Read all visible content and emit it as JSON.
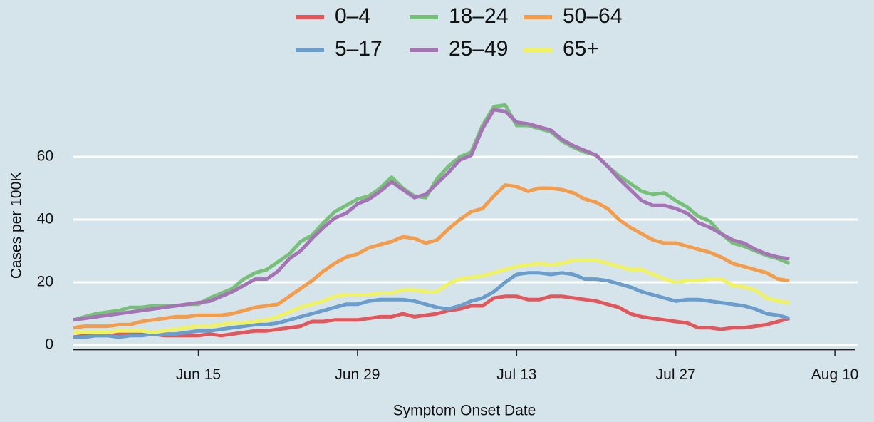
{
  "chart_data": {
    "type": "line",
    "x_label": "Symptom Onset Date",
    "y_label": "Cases per 100K",
    "x": [
      "Jun 4",
      "Jun 5",
      "Jun 6",
      "Jun 7",
      "Jun 8",
      "Jun 9",
      "Jun 10",
      "Jun 11",
      "Jun 12",
      "Jun 13",
      "Jun 14",
      "Jun 15",
      "Jun 16",
      "Jun 17",
      "Jun 18",
      "Jun 19",
      "Jun 20",
      "Jun 21",
      "Jun 22",
      "Jun 23",
      "Jun 24",
      "Jun 25",
      "Jun 26",
      "Jun 27",
      "Jun 28",
      "Jun 29",
      "Jun 30",
      "Jul 1",
      "Jul 2",
      "Jul 3",
      "Jul 4",
      "Jul 5",
      "Jul 6",
      "Jul 7",
      "Jul 8",
      "Jul 9",
      "Jul 10",
      "Jul 11",
      "Jul 12",
      "Jul 13",
      "Jul 14",
      "Jul 15",
      "Jul 16",
      "Jul 17",
      "Jul 18",
      "Jul 19",
      "Jul 20",
      "Jul 21",
      "Jul 22",
      "Jul 23",
      "Jul 24",
      "Jul 25",
      "Jul 26",
      "Jul 27",
      "Jul 28",
      "Jul 29",
      "Jul 30",
      "Jul 31",
      "Aug 1",
      "Aug 2",
      "Aug 3",
      "Aug 4",
      "Aug 5",
      "Aug 6"
    ],
    "xlim": [
      "Jun 4",
      "Aug 12"
    ],
    "xticks": [
      "Jun 15",
      "Jun 29",
      "Jul 13",
      "Jul 27",
      "Aug 10"
    ],
    "ylim": [
      -1.5,
      80
    ],
    "yticks": [
      0,
      20,
      40,
      60
    ],
    "grid": true,
    "series": [
      {
        "name": "0–4",
        "color": "#e2575b",
        "values": [
          2.5,
          3,
          3,
          3,
          3.5,
          3.5,
          3.5,
          3.5,
          3,
          3,
          3,
          3,
          3.5,
          3,
          3.5,
          4,
          4.5,
          4.5,
          5,
          5.5,
          6,
          7.5,
          7.5,
          8,
          8,
          8,
          8.5,
          9,
          9,
          10,
          9,
          9.5,
          10,
          11,
          11.5,
          12.5,
          12.5,
          15,
          15.5,
          15.5,
          14.5,
          14.5,
          15.5,
          15.5,
          15,
          14.5,
          14,
          13,
          12,
          10,
          9,
          8.5,
          8,
          7.5,
          7,
          5.5,
          5.5,
          5,
          5.5,
          5.5,
          6,
          6.5,
          7.5,
          8.5
        ]
      },
      {
        "name": "5–17",
        "color": "#6a9ccc",
        "values": [
          2.5,
          2.5,
          3,
          3,
          2.5,
          3,
          3,
          3.5,
          3.5,
          3.5,
          4,
          4.5,
          4.5,
          5,
          5.5,
          6,
          6.5,
          6.5,
          7,
          8,
          9,
          10,
          11,
          12,
          13,
          13,
          14,
          14.5,
          14.5,
          14.5,
          14,
          13,
          12,
          11.5,
          12.5,
          14,
          15,
          17,
          20,
          22.5,
          23,
          23,
          22.5,
          23,
          22.5,
          21,
          21,
          20.5,
          19.5,
          18.5,
          17,
          16,
          15,
          14,
          14.5,
          14.5,
          14,
          13.5,
          13,
          12.5,
          11.5,
          10,
          9.5,
          8.5
        ]
      },
      {
        "name": "18–24",
        "color": "#78c07a",
        "values": [
          8,
          9,
          10,
          10.5,
          11,
          12,
          12,
          12.5,
          12.5,
          12.5,
          13,
          13,
          15,
          16.5,
          18,
          21,
          23,
          24,
          26.5,
          29,
          33,
          35,
          39,
          42.5,
          44.5,
          46.5,
          47.5,
          50,
          53.5,
          50,
          47.5,
          47,
          53,
          57,
          60,
          61.5,
          70,
          76,
          76.5,
          70,
          70,
          69,
          68,
          65,
          63,
          61.5,
          60.5,
          57,
          54,
          51.5,
          49,
          48,
          48.5,
          46,
          44,
          41,
          39.5,
          35.5,
          32.5,
          31.5,
          30,
          28.5,
          27.5,
          26
        ]
      },
      {
        "name": "25–49",
        "color": "#a574b4",
        "values": [
          8,
          8.5,
          9,
          9.5,
          10,
          10.5,
          11,
          11.5,
          12,
          12.5,
          13,
          13.5,
          14,
          15.5,
          17,
          19,
          21,
          21,
          23.5,
          27.5,
          30,
          34,
          37.5,
          40.5,
          42,
          45,
          46.5,
          49,
          52,
          49.5,
          47,
          48,
          51.5,
          55,
          59,
          60.5,
          69,
          75,
          74.5,
          71,
          70.5,
          69.5,
          68.5,
          65.5,
          63.5,
          62,
          60.5,
          57,
          53,
          49.5,
          46,
          44.5,
          44.5,
          43.5,
          42,
          39,
          37.5,
          35.5,
          33.5,
          32.5,
          30.5,
          29,
          28,
          27.5
        ]
      },
      {
        "name": "50–64",
        "color": "#f29c4c",
        "values": [
          5.5,
          6,
          6,
          6,
          6.5,
          6.5,
          7.5,
          8,
          8.5,
          9,
          9,
          9.5,
          9.5,
          9.5,
          10,
          11,
          12,
          12.5,
          13,
          15.5,
          18,
          20.5,
          23.5,
          26,
          28,
          29,
          31,
          32,
          33,
          34.5,
          34,
          32.5,
          33.5,
          37,
          40,
          42.5,
          43.5,
          47.5,
          51,
          50.5,
          49,
          50,
          50,
          49.5,
          48.5,
          46.5,
          45.5,
          43.5,
          40,
          37.5,
          35.5,
          33.5,
          32.5,
          32.5,
          31.5,
          30.5,
          29.5,
          28,
          26,
          25,
          24,
          23,
          21,
          20.5
        ]
      },
      {
        "name": "65+",
        "color": "#f0f260",
        "values": [
          4,
          4,
          4,
          4,
          4.5,
          4.5,
          4.5,
          4,
          4.5,
          5,
          5.5,
          6,
          6,
          6.5,
          7,
          7,
          7.5,
          8,
          9,
          10.5,
          12,
          13,
          14,
          15.5,
          16,
          16,
          16,
          16.5,
          16.5,
          17.5,
          17.5,
          17,
          17,
          19.5,
          21,
          21.5,
          22,
          23,
          24,
          25,
          25.5,
          26,
          25.5,
          26,
          27,
          27,
          27,
          26,
          25,
          24,
          24,
          22.5,
          21,
          20,
          20.5,
          20.5,
          21,
          21,
          19,
          18.5,
          17.5,
          15,
          14,
          13.5
        ]
      }
    ]
  }
}
